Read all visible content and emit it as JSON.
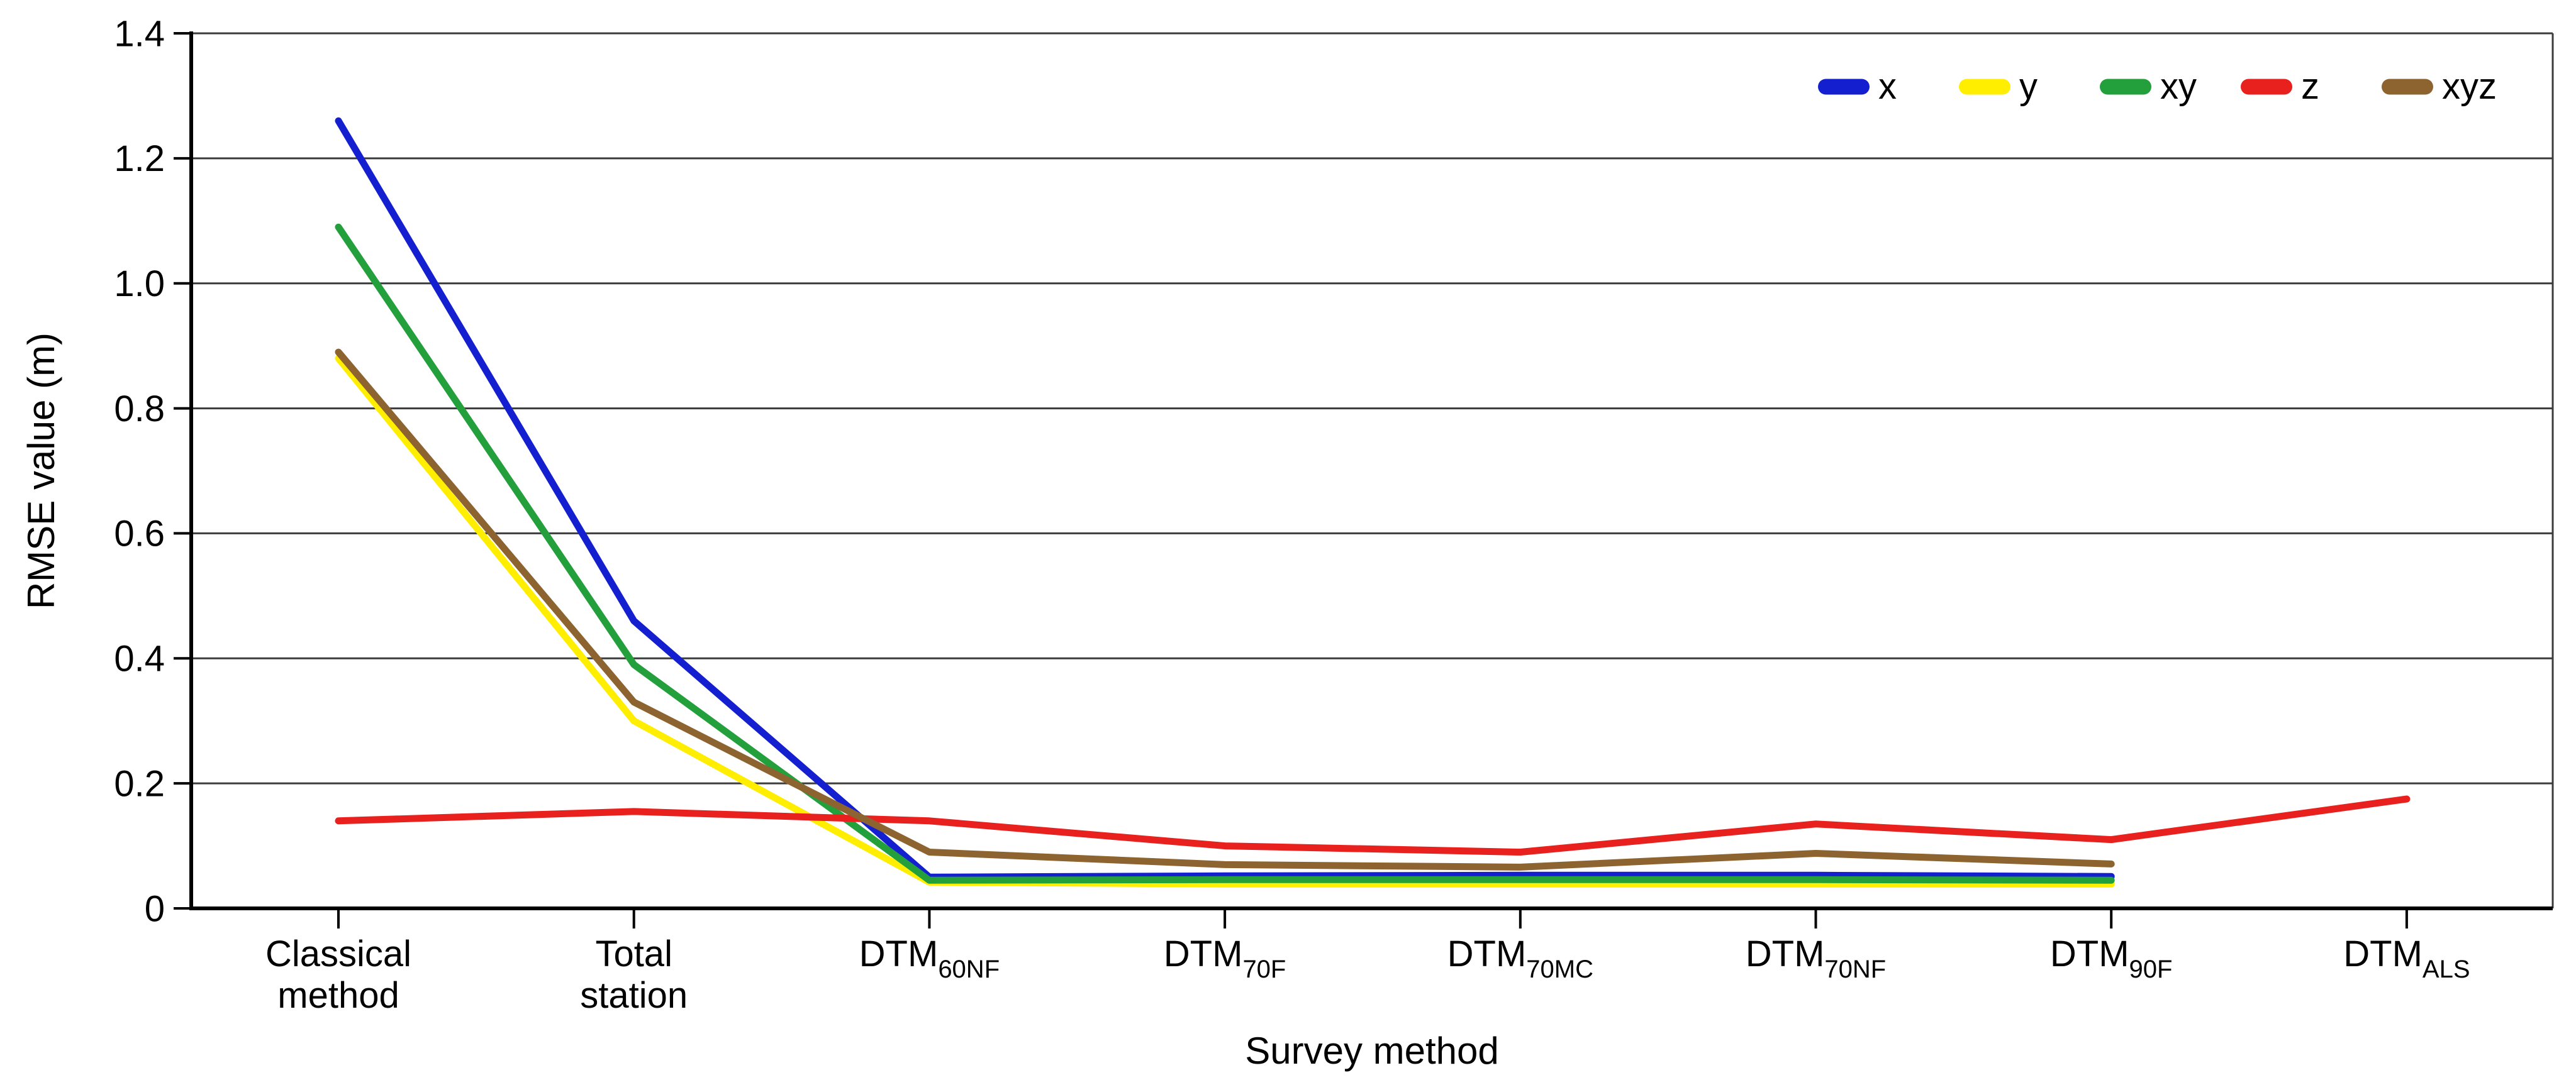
{
  "figure": {
    "background": "#ffffff",
    "frame_color": "#3c3c3c",
    "axis_color": "#000000",
    "gridline_color": "#3c3c3c"
  },
  "chart_data": {
    "type": "line",
    "title": "",
    "xlabel": "Survey method",
    "ylabel": "RMSE value (m)",
    "ylim": [
      0,
      1.4
    ],
    "grid": "horizontal",
    "legend_position": "top-right",
    "categories": [
      {
        "id": "classical",
        "label_lines": [
          "Classical",
          "method"
        ]
      },
      {
        "id": "total-station",
        "label_lines": [
          "Total",
          "station"
        ]
      },
      {
        "id": "dtm-60nf",
        "main": "DTM",
        "sub": "60NF"
      },
      {
        "id": "dtm-70f",
        "main": "DTM",
        "sub": "70F"
      },
      {
        "id": "dtm-70mc",
        "main": "DTM",
        "sub": "70MC"
      },
      {
        "id": "dtm-70nf",
        "main": "DTM",
        "sub": "70NF"
      },
      {
        "id": "dtm-90f",
        "main": "DTM",
        "sub": "90F"
      },
      {
        "id": "dtm-als",
        "main": "DTM",
        "sub": "ALS"
      }
    ],
    "y_ticks": [
      {
        "value": 0.0,
        "label": "0"
      },
      {
        "value": 0.2,
        "label": "0.2"
      },
      {
        "value": 0.4,
        "label": "0.4"
      },
      {
        "value": 0.6,
        "label": "0.6"
      },
      {
        "value": 0.8,
        "label": "0.8"
      },
      {
        "value": 1.0,
        "label": "1.0"
      },
      {
        "value": 1.2,
        "label": "1.2"
      },
      {
        "value": 1.4,
        "label": "1.4"
      }
    ],
    "series": [
      {
        "name": "x",
        "color": "#1420d0",
        "values": [
          1.26,
          0.46,
          0.05,
          0.052,
          0.053,
          0.053,
          0.051,
          null
        ]
      },
      {
        "name": "y",
        "color": "#ffee00",
        "values": [
          0.88,
          0.3,
          0.042,
          0.039,
          0.039,
          0.039,
          0.039,
          null
        ]
      },
      {
        "name": "xy",
        "color": "#23a03c",
        "values": [
          1.09,
          0.39,
          0.045,
          0.046,
          0.046,
          0.046,
          0.045,
          null
        ]
      },
      {
        "name": "z",
        "color": "#e8201e",
        "values": [
          0.14,
          0.155,
          0.14,
          0.1,
          0.09,
          0.135,
          0.11,
          0.175
        ]
      },
      {
        "name": "xyz",
        "color": "#8d6430",
        "values": [
          0.89,
          0.33,
          0.09,
          0.07,
          0.066,
          0.088,
          0.071,
          null
        ]
      }
    ],
    "legend": [
      "x",
      "y",
      "xy",
      "z",
      "xyz"
    ]
  }
}
